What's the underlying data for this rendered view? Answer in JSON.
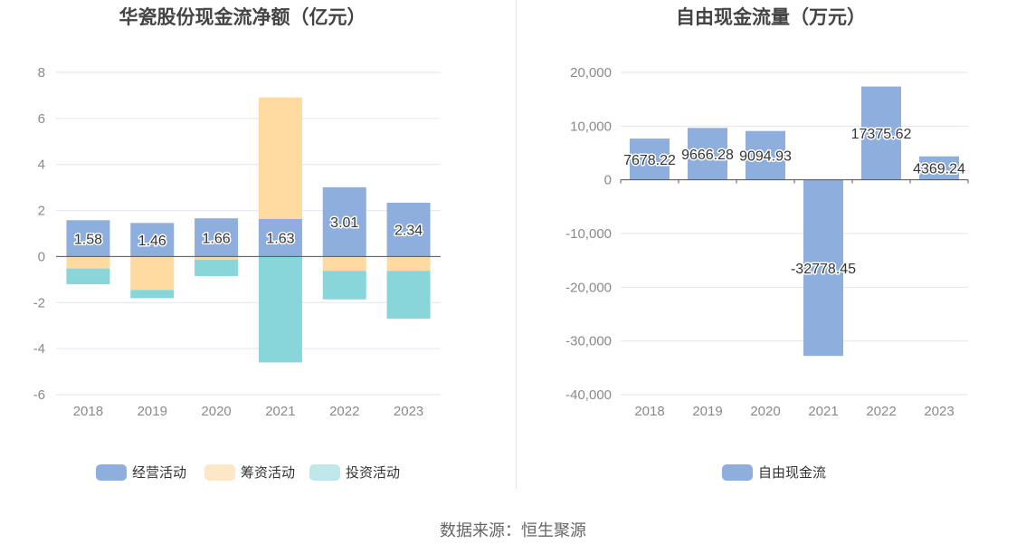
{
  "chart_data": [
    {
      "type": "bar",
      "stacked": true,
      "title": "华瓷股份现金流净额（亿元）",
      "categories": [
        "2018",
        "2019",
        "2020",
        "2021",
        "2022",
        "2023"
      ],
      "series": [
        {
          "name": "经营活动",
          "color": "#8eaedd",
          "values": [
            1.58,
            1.46,
            1.66,
            1.63,
            3.01,
            2.34
          ]
        },
        {
          "name": "筹资活动",
          "color": "#fed9a0",
          "values": [
            -0.52,
            -1.45,
            -0.13,
            5.28,
            -0.62,
            -0.62
          ]
        },
        {
          "name": "投资活动",
          "color": "#88d6da",
          "values": [
            -0.68,
            -0.36,
            -0.72,
            -4.6,
            -1.24,
            -2.08
          ]
        }
      ],
      "value_labels": [
        "1.58",
        "1.46",
        "1.66",
        "1.63",
        "3.01",
        "2.34"
      ],
      "yticks": [
        "8",
        "6",
        "4",
        "2",
        "0",
        "-2",
        "-4",
        "-6"
      ],
      "ylim": [
        -6,
        8
      ],
      "legend": [
        {
          "label": "经营活动",
          "color": "#8eaedd"
        },
        {
          "label": "筹资活动",
          "color": "#fee7c6"
        },
        {
          "label": "投资活动",
          "color": "#bfe8ea"
        }
      ],
      "legend_position": "bottom",
      "grid": true
    },
    {
      "type": "bar",
      "title": "自由现金流量（万元）",
      "categories": [
        "2018",
        "2019",
        "2020",
        "2021",
        "2022",
        "2023"
      ],
      "series": [
        {
          "name": "自由现金流",
          "color": "#8eaedd",
          "values": [
            7678.22,
            9666.28,
            9094.93,
            -32778.45,
            17375.62,
            4369.24
          ]
        }
      ],
      "value_labels": [
        "7678.22",
        "9666.28",
        "9094.93",
        "-32778.45",
        "17375.62",
        "4369.24"
      ],
      "yticks": [
        "20,000",
        "10,000",
        "0",
        "-10,000",
        "-20,000",
        "-30,000",
        "-40,000"
      ],
      "ylim": [
        -40000,
        20000
      ],
      "legend": [
        {
          "label": "自由现金流",
          "color": "#8eaedd"
        }
      ],
      "legend_position": "bottom",
      "grid": true
    }
  ],
  "source_text": "数据来源：恒生聚源"
}
